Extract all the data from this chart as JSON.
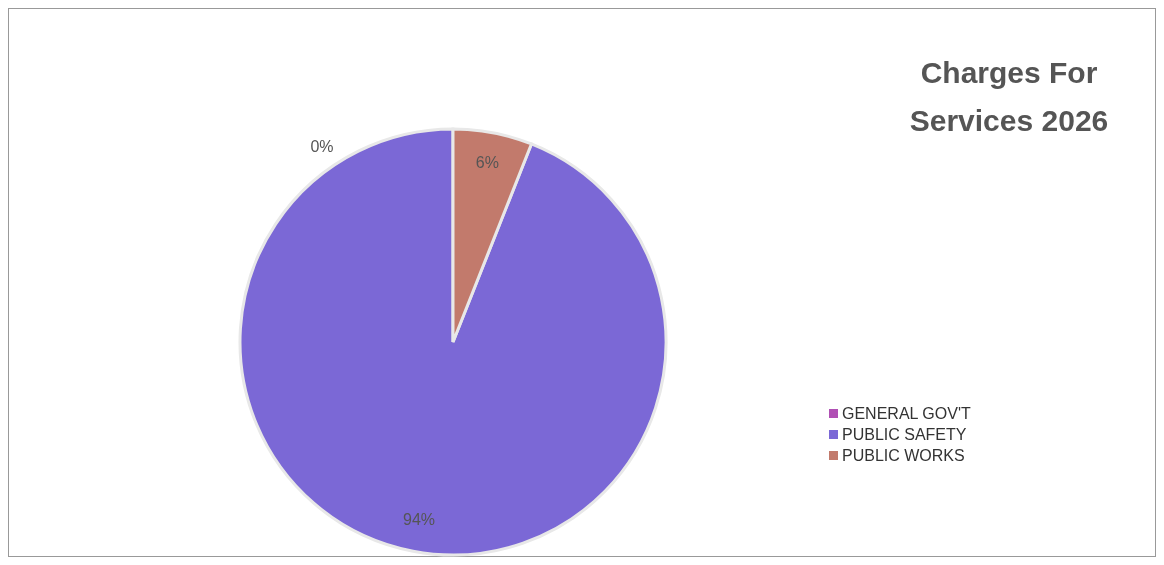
{
  "chart_data": {
    "type": "pie",
    "title": "Charges For Services 2026",
    "categories": [
      "GENERAL GOV'T",
      "PUBLIC SAFETY",
      "PUBLIC WORKS"
    ],
    "values": [
      0,
      94,
      6
    ],
    "colors": [
      "#b04fb4",
      "#7b68d6",
      "#c27a6c"
    ],
    "value_labels": [
      "0%",
      "94%",
      "6%"
    ],
    "legend": "right"
  }
}
